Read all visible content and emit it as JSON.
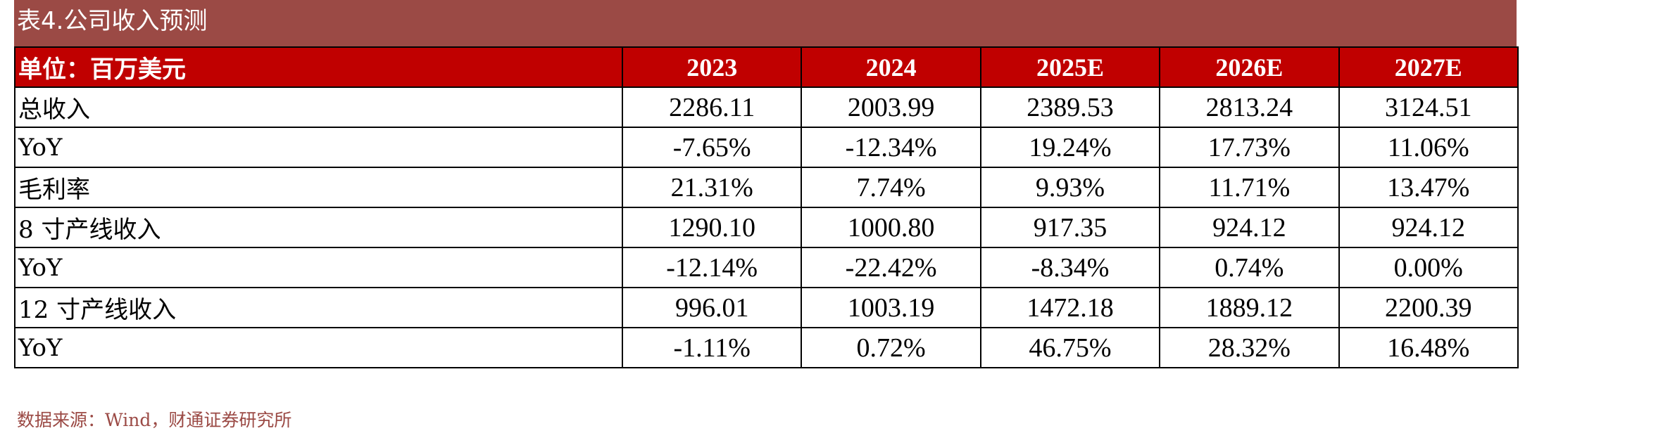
{
  "title": "表4.公司收入预测",
  "table": {
    "header": {
      "label": "单位：百万美元",
      "years": [
        "2023",
        "2024",
        "2025E",
        "2026E",
        "2027E"
      ]
    },
    "rows": [
      {
        "label": "总收入",
        "values": [
          "2286.11",
          "2003.99",
          "2389.53",
          "2813.24",
          "3124.51"
        ]
      },
      {
        "label": "YoY",
        "values": [
          "-7.65%",
          "-12.34%",
          "19.24%",
          "17.73%",
          "11.06%"
        ]
      },
      {
        "label": "毛利率",
        "values": [
          "21.31%",
          "7.74%",
          "9.93%",
          "11.71%",
          "13.47%"
        ]
      },
      {
        "label": "8 寸产线收入",
        "values": [
          "1290.10",
          "1000.80",
          "917.35",
          "924.12",
          "924.12"
        ]
      },
      {
        "label": "YoY",
        "values": [
          "-12.14%",
          "-22.42%",
          "-8.34%",
          "0.74%",
          "0.00%"
        ]
      },
      {
        "label": "12 寸产线收入",
        "values": [
          "996.01",
          "1003.19",
          "1472.18",
          "1889.12",
          "2200.39"
        ]
      },
      {
        "label": "YoY",
        "values": [
          "-1.11%",
          "0.72%",
          "46.75%",
          "28.32%",
          "16.48%"
        ]
      }
    ]
  },
  "source": "数据来源：Wind，财通证券研究所",
  "colors": {
    "title_bg": "#9b4a45",
    "header_bg": "#c00000",
    "source_text": "#9b4a45"
  }
}
